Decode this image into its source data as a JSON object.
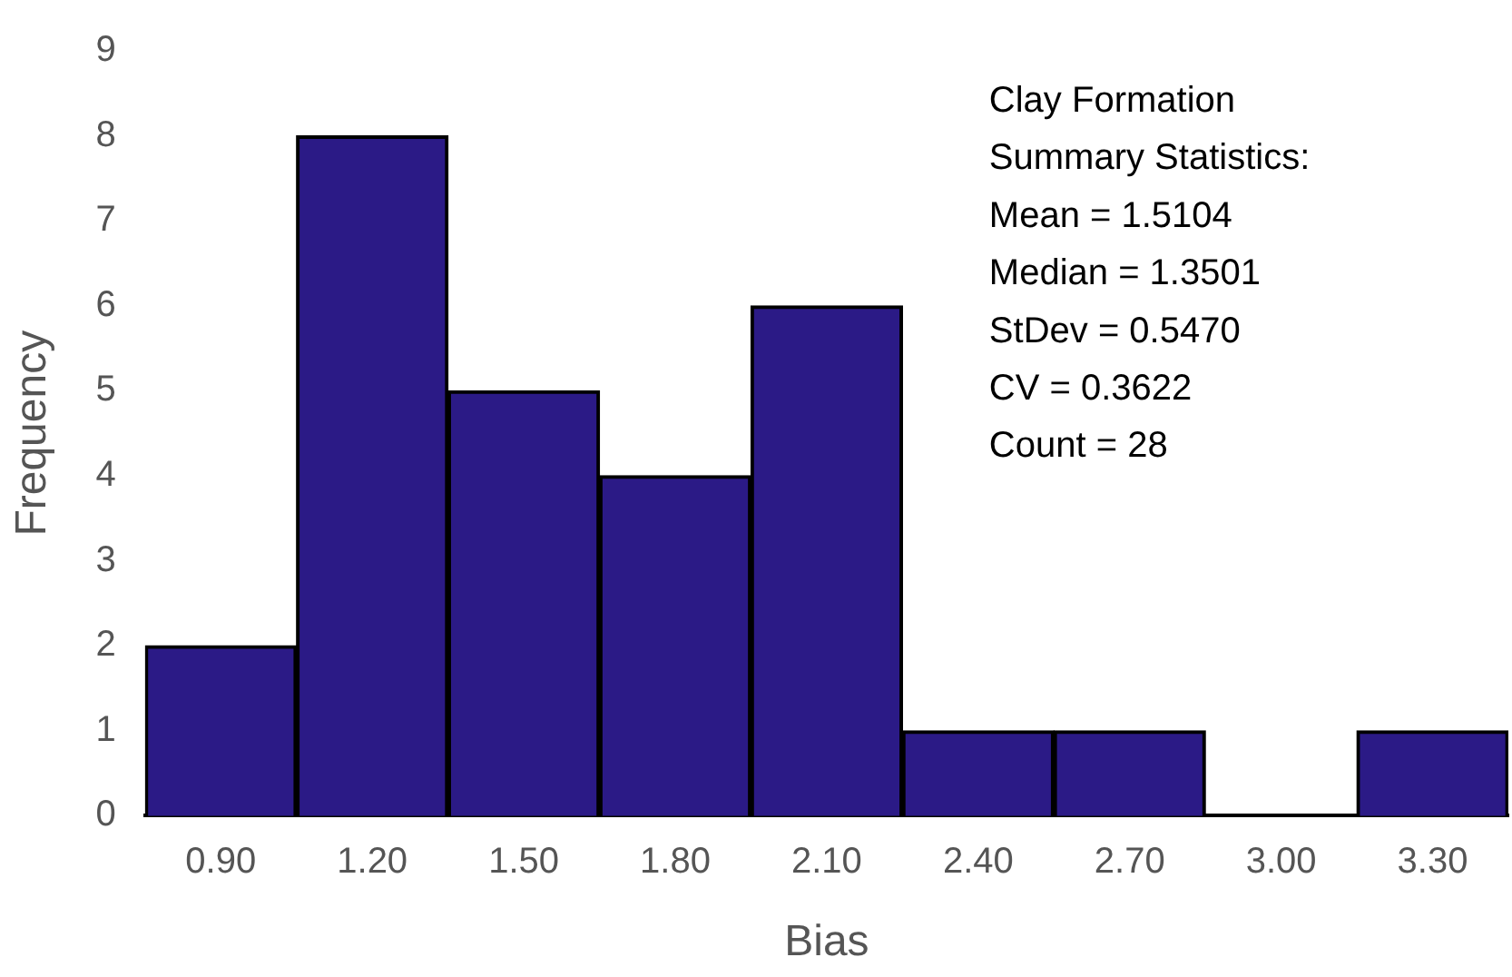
{
  "chart_data": {
    "type": "bar",
    "xlabel": "Bias",
    "ylabel": "Frequency",
    "categories": [
      "0.90",
      "1.20",
      "1.50",
      "1.80",
      "2.10",
      "2.40",
      "2.70",
      "3.00",
      "3.30"
    ],
    "values": [
      2,
      8,
      5,
      4,
      6,
      1,
      1,
      0,
      1
    ],
    "color": "#2b1a86",
    "ylim": [
      0,
      9
    ],
    "yticks": [
      0,
      1,
      2,
      3,
      4,
      5,
      6,
      7,
      8,
      9
    ],
    "grid": false,
    "legend": false,
    "annotations": [
      "Clay Formation",
      "Summary Statistics:",
      "Mean = 1.5104",
      "Median = 1.3501",
      "StDev = 0.5470",
      "CV = 0.3622",
      "Count = 28"
    ]
  }
}
